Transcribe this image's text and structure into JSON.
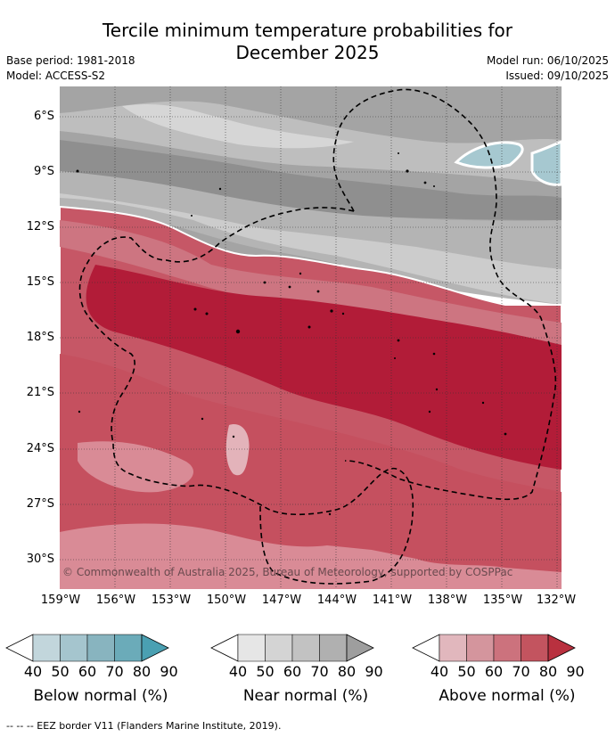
{
  "title_line1": "Tercile minimum temperature probabilities for",
  "title_line2": "December 2025",
  "base_period": "Base period: 1981-2018",
  "model": "Model: ACCESS-S2",
  "model_run": "Model run: 06/10/2025",
  "issued": "Issued: 09/10/2025",
  "copyright": "© Commonwealth of Australia 2025, Bureau of Meteorology, supported by COSPPac",
  "lat_labels": [
    "6°S",
    "9°S",
    "12°S",
    "15°S",
    "18°S",
    "21°S",
    "24°S",
    "27°S",
    "30°S"
  ],
  "lon_labels": [
    "159°W",
    "156°W",
    "153°W",
    "150°W",
    "147°W",
    "144°W",
    "141°W",
    "138°W",
    "135°W",
    "132°W"
  ],
  "legends": [
    {
      "title": "Below normal (%)",
      "colors": [
        "#ffffff",
        "#c2d6dc",
        "#a5c5ce",
        "#88b4bf",
        "#6babb9",
        "#4aa0b2"
      ],
      "ticks": [
        "40",
        "50",
        "60",
        "70",
        "80",
        "90"
      ]
    },
    {
      "title": "Near normal (%)",
      "colors": [
        "#ffffff",
        "#e6e6e6",
        "#d4d4d4",
        "#c2c2c2",
        "#b0b0b0",
        "#9e9e9e"
      ],
      "ticks": [
        "40",
        "50",
        "60",
        "70",
        "80",
        "90"
      ]
    },
    {
      "title": "Above normal (%)",
      "colors": [
        "#ffffff",
        "#e1b7bd",
        "#d4959d",
        "#cc727d",
        "#c3545f",
        "#b9313f"
      ],
      "ticks": [
        "40",
        "50",
        "60",
        "70",
        "80",
        "90"
      ]
    }
  ],
  "eez_note": "--  --  -- EEZ border V11 (Flanders Marine Institute, 2019)."
}
